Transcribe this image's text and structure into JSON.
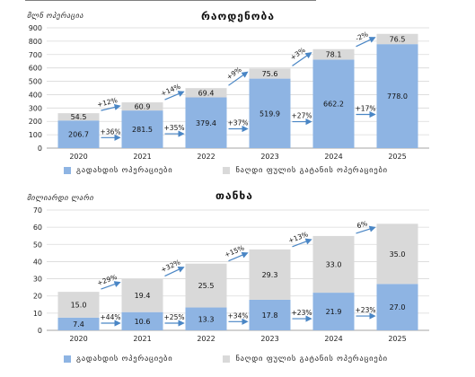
{
  "colors": {
    "blue_bar": "#8eb4e3",
    "gray_bar": "#d9d9d9",
    "arrow": "#4a86c5",
    "grid": "#d9d9d9"
  },
  "chart_data": [
    {
      "type": "bar",
      "stacked": true,
      "title": "რაოდენობა",
      "ylabel": "მლნ ოპერაცია",
      "ylim": [
        0,
        900
      ],
      "yticks": [
        0,
        100,
        200,
        300,
        400,
        500,
        600,
        700,
        800,
        900
      ],
      "categories": [
        "2020",
        "2021",
        "2022",
        "2023",
        "2024",
        "2025"
      ],
      "series": [
        {
          "name": "გადახდის ოპერაციები",
          "color": "#8eb4e3",
          "values": [
            206.7,
            281.5,
            379.4,
            519.9,
            662.2,
            778.0
          ],
          "labels": [
            "206.7",
            "281.5",
            "379.4",
            "519.9",
            "662.2",
            "778.0"
          ]
        },
        {
          "name": "ნაღდი ფულის გატანის ოპერაციები",
          "color": "#d9d9d9",
          "values": [
            54.5,
            60.9,
            69.4,
            75.6,
            78.1,
            76.5
          ],
          "labels": [
            "54.5",
            "60.9",
            "69.4",
            "75.6",
            "78.1",
            "76.5"
          ]
        }
      ],
      "growth_top": [
        "+12%",
        "+14%",
        "+9%",
        "+3%",
        "-2%"
      ],
      "growth_bottom": [
        "+36%",
        "+35%",
        "+37%",
        "+27%",
        "+17%"
      ],
      "grid": true,
      "legend": "bottom"
    },
    {
      "type": "bar",
      "stacked": true,
      "title": "თანხა",
      "ylabel": "მილიარდი ლარი",
      "ylim": [
        0,
        70
      ],
      "yticks": [
        0,
        10,
        20,
        30,
        40,
        50,
        60,
        70
      ],
      "categories": [
        "2020",
        "2021",
        "2022",
        "2023",
        "2024",
        "2025"
      ],
      "series": [
        {
          "name": "გადახდის ოპერაციები",
          "color": "#8eb4e3",
          "values": [
            7.4,
            10.6,
            13.3,
            17.8,
            21.9,
            27.0
          ],
          "labels": [
            "7.4",
            "10.6",
            "13.3",
            "17.8",
            "21.9",
            "27.0"
          ]
        },
        {
          "name": "ნაღდი ფულის გატანის ოპერაციები",
          "color": "#d9d9d9",
          "values": [
            15.0,
            19.4,
            25.5,
            29.3,
            33.0,
            35.0
          ],
          "labels": [
            "15.0",
            "19.4",
            "25.5",
            "29.3",
            "33.0",
            "35.0"
          ]
        }
      ],
      "growth_top": [
        "+29%",
        "+32%",
        "+15%",
        "+13%",
        "6%"
      ],
      "growth_bottom": [
        "+44%",
        "+25%",
        "+34%",
        "+23%",
        "+23%"
      ],
      "grid": true,
      "legend": "bottom"
    }
  ]
}
